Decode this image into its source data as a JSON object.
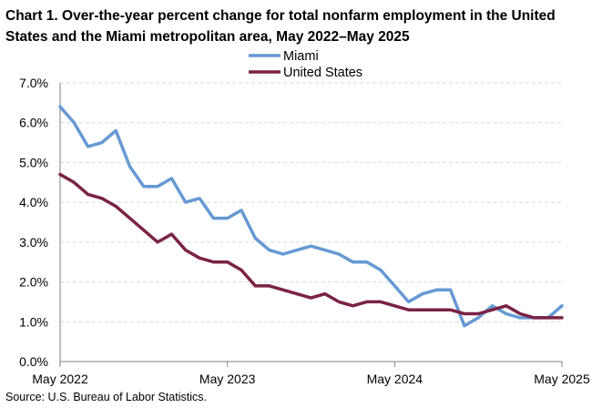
{
  "chart_data": {
    "type": "line",
    "title": "Chart 1. Over-the-year percent change for total nonfarm employment in the United States and the Miami metropolitan area, May 2022–May 2025",
    "source": "Source: U.S. Bureau of Labor Statistics.",
    "xlabel": "",
    "ylabel": "",
    "ylim": [
      0,
      7
    ],
    "yticks": [
      "0.0%",
      "1.0%",
      "2.0%",
      "3.0%",
      "4.0%",
      "5.0%",
      "6.0%",
      "7.0%"
    ],
    "x_tick_labels": [
      "May 2022",
      "May 2023",
      "May 2024",
      "May 2025"
    ],
    "legend_position": "top-center",
    "series": [
      {
        "name": "Miami",
        "color": "#6699d4",
        "values": [
          6.4,
          6.0,
          5.4,
          5.5,
          5.8,
          4.9,
          4.4,
          4.4,
          4.6,
          4.0,
          4.1,
          3.6,
          3.6,
          3.8,
          3.1,
          2.8,
          2.7,
          2.8,
          2.9,
          2.8,
          2.7,
          2.5,
          2.5,
          2.3,
          1.9,
          1.5,
          1.7,
          1.8,
          1.8,
          0.9,
          1.1,
          1.4,
          1.2,
          1.1,
          1.1,
          1.1,
          1.4
        ]
      },
      {
        "name": "United States",
        "color": "#7b2245",
        "values": [
          4.7,
          4.5,
          4.2,
          4.1,
          3.9,
          3.6,
          3.3,
          3.0,
          3.2,
          2.8,
          2.6,
          2.5,
          2.5,
          2.3,
          1.9,
          1.9,
          1.8,
          1.7,
          1.6,
          1.7,
          1.5,
          1.4,
          1.5,
          1.5,
          1.4,
          1.3,
          1.3,
          1.3,
          1.3,
          1.2,
          1.2,
          1.3,
          1.4,
          1.2,
          1.1,
          1.1,
          1.1
        ]
      }
    ]
  },
  "colors": {
    "gridline": "#d9d9d9",
    "axis": "#808080"
  }
}
